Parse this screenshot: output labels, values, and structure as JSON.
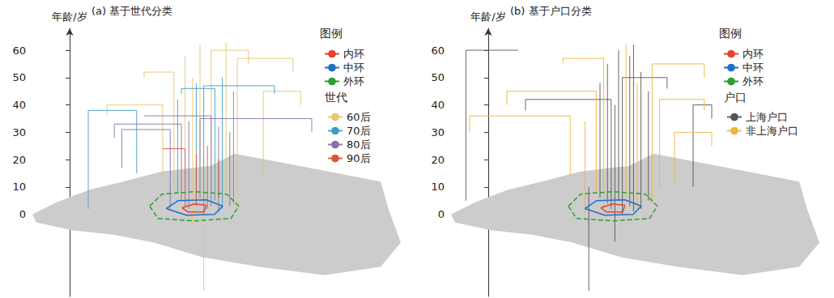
{
  "chart_data": [
    {
      "type": "line",
      "title": "(a) 基于世代分类",
      "y_label": "年龄/岁",
      "xlim": [
        -10,
        90
      ],
      "ylim": [
        -30,
        68
      ],
      "yticks": [
        0,
        10,
        20,
        30,
        40,
        50,
        60
      ],
      "grid": false,
      "tick_labels": "y",
      "legend": "top-right",
      "legend_title": "图例",
      "group_title": "世代",
      "base_map": {
        "color": "#cccccc",
        "outline": [
          [
            -10,
            0
          ],
          [
            -3.5,
            4.4
          ],
          [
            5.2,
            8.9
          ],
          [
            13.9,
            11.8
          ],
          [
            24.8,
            15.7
          ],
          [
            37.8,
            17.7
          ],
          [
            44.3,
            22.2
          ],
          [
            68.3,
            16
          ],
          [
            83.5,
            12
          ],
          [
            85.7,
            1.5
          ],
          [
            88.9,
            -10.3
          ],
          [
            83.5,
            -19.2
          ],
          [
            68.3,
            -22.2
          ],
          [
            50.9,
            -19.2
          ],
          [
            35.7,
            -15.7
          ],
          [
            22.6,
            -10.3
          ],
          [
            11.7,
            -7.4
          ],
          [
            0.9,
            -5.9
          ],
          [
            -8.9,
            -3.0
          ]
        ]
      },
      "rings": [
        {
          "name": "内环",
          "color": "#e8432e",
          "line_style": "solid",
          "points": [
            [
              30.2,
              2.4
            ],
            [
              33.5,
              3.8
            ],
            [
              36.7,
              3.3
            ],
            [
              36.1,
              0.9
            ],
            [
              31.7,
              0.9
            ],
            [
              30.2,
              2.4
            ]
          ]
        },
        {
          "name": "中环",
          "color": "#1f6fc5",
          "line_style": "solid",
          "points": [
            [
              25.9,
              2.1
            ],
            [
              29.1,
              5.0
            ],
            [
              36.7,
              5.3
            ],
            [
              41.1,
              3.0
            ],
            [
              38.9,
              0
            ],
            [
              31.3,
              -0.3
            ],
            [
              25.9,
              2.1
            ]
          ]
        },
        {
          "name": "外环",
          "color": "#2ca02c",
          "line_style": "dashed",
          "points": [
            [
              21.5,
              3.0
            ],
            [
              24.8,
              7.4
            ],
            [
              33.5,
              8.3
            ],
            [
              42.2,
              7.4
            ],
            [
              45.4,
              3.0
            ],
            [
              43.3,
              -1.5
            ],
            [
              33.5,
              -2.4
            ],
            [
              23.7,
              -1.5
            ],
            [
              21.5,
              3.0
            ]
          ]
        }
      ],
      "series": [
        {
          "name": "60后",
          "color": "#e6c76b",
          "paths": [
            [
              [
                35,
                5
              ],
              [
                35,
                62
              ]
            ],
            [
              [
                38,
                8
              ],
              [
                38,
                60
              ],
              [
                48,
                60
              ],
              [
                48,
                55
              ]
            ],
            [
              [
                31,
                4
              ],
              [
                31,
                58
              ]
            ],
            [
              [
                42,
                6
              ],
              [
                42,
                63
              ]
            ],
            [
              [
                28,
                10
              ],
              [
                28,
                52
              ],
              [
                20,
                52
              ],
              [
                20,
                50
              ]
            ],
            [
              [
                45,
                2
              ],
              [
                45,
                57
              ],
              [
                60,
                57
              ],
              [
                60,
                52
              ]
            ],
            [
              [
                33,
                -4
              ],
              [
                33,
                50
              ]
            ],
            [
              [
                36,
                -28
              ],
              [
                36,
                20
              ]
            ],
            [
              [
                52,
                12
              ],
              [
                52,
                45
              ],
              [
                62,
                45
              ],
              [
                62,
                40
              ]
            ],
            [
              [
                25,
                14
              ],
              [
                25,
                40
              ],
              [
                10,
                40
              ],
              [
                10,
                36
              ]
            ]
          ]
        },
        {
          "name": "70后",
          "color": "#3a9fc6",
          "paths": [
            [
              [
                34,
                3
              ],
              [
                34,
                48
              ]
            ],
            [
              [
                39,
                5
              ],
              [
                39,
                46
              ],
              [
                30,
                46
              ],
              [
                30,
                44
              ]
            ],
            [
              [
                41,
                2
              ],
              [
                41,
                50
              ]
            ],
            [
              [
                29,
                8
              ],
              [
                29,
                42
              ]
            ],
            [
              [
                36,
                0
              ],
              [
                36,
                47
              ],
              [
                55,
                47
              ],
              [
                55,
                44
              ]
            ],
            [
              [
                18,
                15
              ],
              [
                18,
                38
              ],
              [
                5,
                38
              ],
              [
                5,
                2
              ]
            ],
            [
              [
                44,
                4
              ],
              [
                44,
                45
              ]
            ]
          ]
        },
        {
          "name": "80后",
          "color": "#8a6fa8",
          "paths": [
            [
              [
                32,
                2
              ],
              [
                32,
                34
              ]
            ],
            [
              [
                38,
                3
              ],
              [
                38,
                36
              ],
              [
                20,
                36
              ]
            ],
            [
              [
                40,
                1
              ],
              [
                40,
                32
              ]
            ],
            [
              [
                35,
                6
              ],
              [
                35,
                35
              ],
              [
                65,
                35
              ],
              [
                65,
                30
              ]
            ],
            [
              [
                30,
                5
              ],
              [
                30,
                33
              ],
              [
                12,
                33
              ],
              [
                12,
                28
              ]
            ],
            [
              [
                43,
                3
              ],
              [
                43,
                30
              ]
            ],
            [
              [
                27,
                2
              ],
              [
                27,
                31
              ],
              [
                14,
                31
              ],
              [
                14,
                17
              ]
            ]
          ]
        },
        {
          "name": "90后",
          "color": "#d9553a",
          "paths": [
            [
              [
                34,
                4
              ],
              [
                34,
                22
              ]
            ],
            [
              [
                37,
                2
              ],
              [
                37,
                25
              ]
            ],
            [
              [
                40,
                6
              ],
              [
                40,
                20
              ]
            ],
            [
              [
                31,
                3
              ],
              [
                31,
                24
              ],
              [
                25,
                24
              ]
            ]
          ]
        }
      ]
    },
    {
      "type": "line",
      "title": "(b) 基于户口分类",
      "y_label": "年龄/岁",
      "xlim": [
        -10,
        90
      ],
      "ylim": [
        -30,
        68
      ],
      "yticks": [
        0,
        10,
        20,
        30,
        40,
        50,
        60
      ],
      "grid": false,
      "tick_labels": "y",
      "legend": "top-right",
      "legend_title": "图例",
      "group_title": "户口",
      "base_map": {
        "color": "#cccccc",
        "outline": [
          [
            -10,
            0
          ],
          [
            -3.5,
            4.4
          ],
          [
            5.2,
            8.9
          ],
          [
            13.9,
            11.8
          ],
          [
            24.8,
            15.7
          ],
          [
            37.8,
            17.7
          ],
          [
            44.3,
            22.2
          ],
          [
            68.3,
            16
          ],
          [
            83.5,
            12
          ],
          [
            85.7,
            1.5
          ],
          [
            88.9,
            -10.3
          ],
          [
            83.5,
            -19.2
          ],
          [
            68.3,
            -22.2
          ],
          [
            50.9,
            -19.2
          ],
          [
            35.7,
            -15.7
          ],
          [
            22.6,
            -10.3
          ],
          [
            11.7,
            -7.4
          ],
          [
            0.9,
            -5.9
          ],
          [
            -8.9,
            -3.0
          ]
        ]
      },
      "rings": [
        {
          "name": "内环",
          "color": "#e8432e",
          "line_style": "solid",
          "points": [
            [
              30.2,
              2.4
            ],
            [
              33.5,
              3.8
            ],
            [
              36.7,
              3.3
            ],
            [
              36.1,
              0.9
            ],
            [
              31.7,
              0.9
            ],
            [
              30.2,
              2.4
            ]
          ]
        },
        {
          "name": "中环",
          "color": "#1f6fc5",
          "line_style": "solid",
          "points": [
            [
              25.9,
              2.1
            ],
            [
              29.1,
              5.0
            ],
            [
              36.7,
              5.3
            ],
            [
              41.1,
              3.0
            ],
            [
              38.9,
              0
            ],
            [
              31.3,
              -0.3
            ],
            [
              25.9,
              2.1
            ]
          ]
        },
        {
          "name": "外环",
          "color": "#2ca02c",
          "line_style": "dashed",
          "points": [
            [
              21.5,
              3.0
            ],
            [
              24.8,
              7.4
            ],
            [
              33.5,
              8.3
            ],
            [
              42.2,
              7.4
            ],
            [
              45.4,
              3.0
            ],
            [
              43.3,
              -1.5
            ],
            [
              33.5,
              -2.4
            ],
            [
              23.7,
              -1.5
            ],
            [
              21.5,
              3.0
            ]
          ]
        }
      ],
      "series": [
        {
          "name": "上海户口",
          "color": "#555555",
          "paths": [
            [
              [
                35,
                5
              ],
              [
                35,
                60
              ]
            ],
            [
              [
                38,
                3
              ],
              [
                38,
                58
              ]
            ],
            [
              [
                32,
                4
              ],
              [
                32,
                55
              ]
            ],
            [
              [
                41,
                2
              ],
              [
                41,
                52
              ]
            ],
            [
              [
                36,
                0
              ],
              [
                36,
                50
              ],
              [
                48,
                50
              ],
              [
                48,
                46
              ]
            ],
            [
              [
                30,
                6
              ],
              [
                30,
                48
              ]
            ],
            [
              [
                43,
                5
              ],
              [
                43,
                45
              ]
            ],
            [
              [
                34,
                -10
              ],
              [
                34,
                40
              ]
            ],
            [
              [
                39,
                1
              ],
              [
                39,
                62
              ]
            ],
            [
              [
                33,
                2
              ],
              [
                33,
                42
              ],
              [
                10,
                42
              ],
              [
                10,
                38
              ]
            ],
            [
              [
                -6,
                5
              ],
              [
                -6,
                60
              ],
              [
                8,
                60
              ]
            ],
            [
              [
                55,
                10
              ],
              [
                55,
                40
              ],
              [
                60,
                40
              ],
              [
                60,
                35
              ]
            ],
            [
              [
                27,
                -28
              ],
              [
                27,
                10
              ]
            ]
          ]
        },
        {
          "name": "非上海户口",
          "color": "#f0b43c",
          "paths": [
            [
              [
                37,
                6
              ],
              [
                37,
                62
              ]
            ],
            [
              [
                31,
                3
              ],
              [
                31,
                57
              ],
              [
                20,
                57
              ],
              [
                20,
                55
              ]
            ],
            [
              [
                44,
                4
              ],
              [
                44,
                55
              ],
              [
                58,
                55
              ],
              [
                58,
                50
              ]
            ],
            [
              [
                29,
                8
              ],
              [
                29,
                45
              ],
              [
                5,
                45
              ],
              [
                5,
                40
              ]
            ],
            [
              [
                46,
                10
              ],
              [
                46,
                42
              ],
              [
                58,
                42
              ],
              [
                58,
                38
              ]
            ],
            [
              [
                22,
                14
              ],
              [
                22,
                36
              ],
              [
                -5,
                36
              ],
              [
                -5,
                30
              ]
            ],
            [
              [
                50,
                12
              ],
              [
                50,
                30
              ],
              [
                60,
                30
              ],
              [
                60,
                25
              ]
            ],
            [
              [
                40,
                2
              ],
              [
                40,
                48
              ]
            ],
            [
              [
                26,
                0
              ],
              [
                26,
                34
              ]
            ]
          ]
        }
      ]
    }
  ]
}
